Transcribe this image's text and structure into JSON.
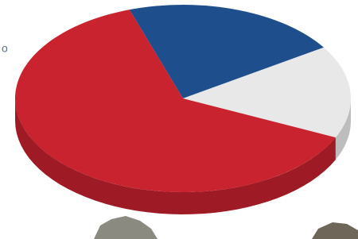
{
  "chart_data": {
    "type": "pie3d",
    "annotation": "o",
    "values": [
      21,
      16,
      63
    ],
    "colors": [
      "#1f4e8c",
      "#e8e8e8",
      "#c8232f"
    ],
    "side_colors": [
      "#163a68",
      "#bdbdbd",
      "#9e1a24"
    ]
  }
}
